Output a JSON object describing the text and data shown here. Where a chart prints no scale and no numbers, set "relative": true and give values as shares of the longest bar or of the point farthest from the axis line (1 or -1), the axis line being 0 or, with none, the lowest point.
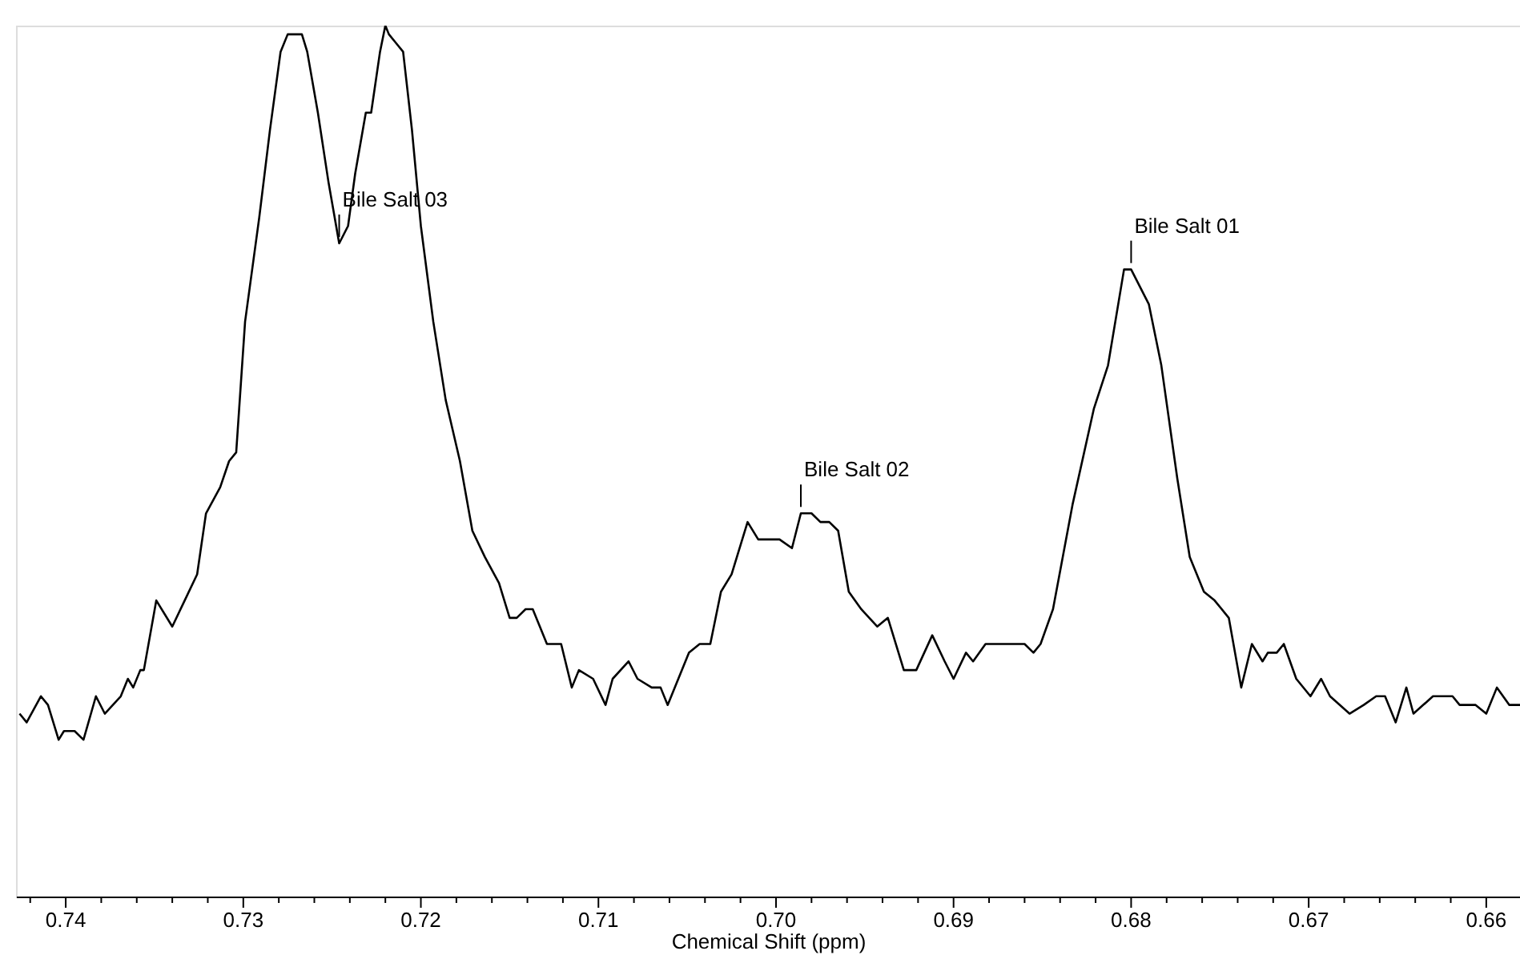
{
  "chart_data": {
    "type": "line",
    "relative": true,
    "xlabel": "Chemical Shift (ppm)",
    "xlim": [
      0.7428,
      0.6581
    ],
    "xticks": [
      {
        "value": 0.742,
        "label": null
      },
      0.74,
      {
        "value": 0.738,
        "label": null
      },
      {
        "value": 0.736,
        "label": null
      },
      {
        "value": 0.734,
        "label": null
      },
      {
        "value": 0.732,
        "label": null
      },
      0.73,
      {
        "value": 0.728,
        "label": null
      },
      {
        "value": 0.726,
        "label": null
      },
      {
        "value": 0.724,
        "label": null
      },
      {
        "value": 0.722,
        "label": null
      },
      0.72,
      {
        "value": 0.718,
        "label": null
      },
      {
        "value": 0.716,
        "label": null
      },
      {
        "value": 0.714,
        "label": null
      },
      {
        "value": 0.712,
        "label": null
      },
      0.71,
      {
        "value": 0.708,
        "label": null
      },
      {
        "value": 0.706,
        "label": null
      },
      {
        "value": 0.704,
        "label": null
      },
      {
        "value": 0.702,
        "label": null
      },
      {
        "value": 0.7,
        "label": "0.70"
      },
      {
        "value": 0.698,
        "label": null
      },
      {
        "value": 0.696,
        "label": null
      },
      {
        "value": 0.694,
        "label": null
      },
      {
        "value": 0.692,
        "label": null
      },
      0.69,
      {
        "value": 0.688,
        "label": null
      },
      {
        "value": 0.686,
        "label": null
      },
      {
        "value": 0.684,
        "label": null
      },
      {
        "value": 0.682,
        "label": null
      },
      0.68,
      {
        "value": 0.678,
        "label": null
      },
      {
        "value": 0.676,
        "label": null
      },
      {
        "value": 0.674,
        "label": null
      },
      {
        "value": 0.672,
        "label": null
      },
      0.67,
      {
        "value": 0.668,
        "label": null
      },
      {
        "value": 0.666,
        "label": null
      },
      {
        "value": 0.664,
        "label": null
      },
      {
        "value": 0.662,
        "label": null
      },
      0.66
    ],
    "series": [
      {
        "color": "#000000",
        "x": [
          0.7426,
          0.7422,
          0.7414,
          0.741,
          0.7404,
          0.7401,
          0.7395,
          0.739,
          0.7383,
          0.7378,
          0.7369,
          0.7365,
          0.7362,
          0.7358,
          0.7356,
          0.7349,
          0.734,
          0.7333,
          0.7326,
          0.7321,
          0.7313,
          0.7308,
          0.7304,
          0.7299,
          0.7291,
          0.7285,
          0.7279,
          0.7275,
          0.727,
          0.7267,
          0.7264,
          0.7258,
          0.7252,
          0.7246,
          0.7241,
          0.7237,
          0.7231,
          0.7228,
          0.7223,
          0.722,
          0.7218,
          0.7214,
          0.721,
          0.7205,
          0.72,
          0.7193,
          0.7186,
          0.7178,
          0.7171,
          0.7164,
          0.7156,
          0.715,
          0.7146,
          0.7141,
          0.7137,
          0.7129,
          0.7121,
          0.7115,
          0.7111,
          0.7103,
          0.7096,
          0.7092,
          0.7083,
          0.7078,
          0.707,
          0.7065,
          0.7061,
          0.7049,
          0.7043,
          0.7037,
          0.7031,
          0.7025,
          0.7016,
          0.701,
          0.7004,
          0.6998,
          0.6991,
          0.6986,
          0.698,
          0.6975,
          0.697,
          0.6965,
          0.6959,
          0.6952,
          0.6943,
          0.6937,
          0.6928,
          0.6921,
          0.6912,
          0.6905,
          0.69,
          0.6893,
          0.6889,
          0.6882,
          0.6875,
          0.6869,
          0.686,
          0.6855,
          0.6851,
          0.6844,
          0.6833,
          0.6821,
          0.6813,
          0.6804,
          0.68,
          0.679,
          0.6783,
          0.6774,
          0.6767,
          0.6759,
          0.6753,
          0.6745,
          0.6738,
          0.6732,
          0.6726,
          0.6723,
          0.6718,
          0.6714,
          0.6707,
          0.6699,
          0.6693,
          0.6688,
          0.6677,
          0.6669,
          0.6662,
          0.6657,
          0.6651,
          0.6645,
          0.6641,
          0.663,
          0.6619,
          0.6615,
          0.6606,
          0.66,
          0.6594,
          0.6587,
          0.6581
        ],
        "values": [
          0.21,
          0.2,
          0.23,
          0.22,
          0.18,
          0.19,
          0.19,
          0.18,
          0.23,
          0.21,
          0.23,
          0.25,
          0.24,
          0.26,
          0.26,
          0.34,
          0.31,
          0.34,
          0.37,
          0.44,
          0.47,
          0.5,
          0.51,
          0.66,
          0.78,
          0.88,
          0.97,
          0.99,
          0.99,
          0.99,
          0.97,
          0.9,
          0.82,
          0.75,
          0.77,
          0.83,
          0.9,
          0.9,
          0.97,
          1.0,
          0.99,
          0.98,
          0.97,
          0.88,
          0.77,
          0.66,
          0.57,
          0.5,
          0.42,
          0.39,
          0.36,
          0.32,
          0.32,
          0.33,
          0.33,
          0.29,
          0.29,
          0.24,
          0.26,
          0.25,
          0.22,
          0.25,
          0.27,
          0.25,
          0.24,
          0.24,
          0.22,
          0.28,
          0.29,
          0.29,
          0.35,
          0.37,
          0.43,
          0.41,
          0.41,
          0.41,
          0.4,
          0.44,
          0.44,
          0.43,
          0.43,
          0.42,
          0.35,
          0.33,
          0.31,
          0.32,
          0.26,
          0.26,
          0.3,
          0.27,
          0.25,
          0.28,
          0.27,
          0.29,
          0.29,
          0.29,
          0.29,
          0.28,
          0.29,
          0.33,
          0.45,
          0.56,
          0.61,
          0.72,
          0.72,
          0.68,
          0.61,
          0.48,
          0.39,
          0.35,
          0.34,
          0.32,
          0.24,
          0.29,
          0.27,
          0.28,
          0.28,
          0.29,
          0.25,
          0.23,
          0.25,
          0.23,
          0.21,
          0.22,
          0.23,
          0.23,
          0.2,
          0.24,
          0.21,
          0.23,
          0.23,
          0.22,
          0.22,
          0.21,
          0.24,
          0.22,
          0.22
        ]
      }
    ],
    "annotations": [
      {
        "text": "Bile Salt 03",
        "x": 0.7246,
        "y": 0.75
      },
      {
        "text": "Bile Salt 02",
        "x": 0.6986,
        "y": 0.44
      },
      {
        "text": "Bile Salt 01",
        "x": 0.68,
        "y": 0.72
      }
    ]
  }
}
